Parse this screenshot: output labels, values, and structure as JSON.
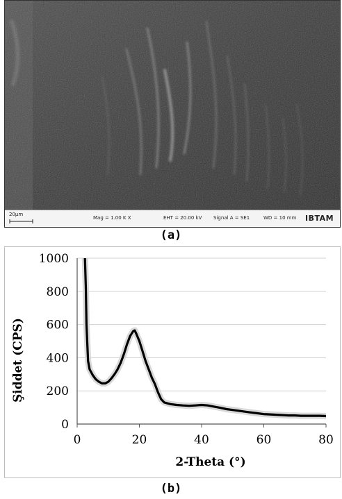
{
  "sem": {
    "scale_bar": "20µm",
    "mag": "Mag = 1.00 K X",
    "eht": "EHT = 20.00 kV",
    "signal": "Signal A = SE1",
    "wd": "WD = 10 mm",
    "brand": "IBTAM"
  },
  "captions": {
    "a": "(a)",
    "b": "(b)"
  },
  "chart_data": {
    "type": "line",
    "xlabel": "2-Theta (°)",
    "ylabel": "Şiddet (CPS)",
    "xlim": [
      0,
      80
    ],
    "ylim": [
      0,
      1000
    ],
    "xticks": [
      0,
      20,
      40,
      60,
      80
    ],
    "yticks": [
      0,
      200,
      400,
      600,
      800,
      1000
    ],
    "grid": "horizontal",
    "legend": "none",
    "line_color": "#000000",
    "x": [
      2.5,
      2.8,
      3,
      3.5,
      4,
      5,
      6,
      7,
      8,
      9,
      10,
      11,
      12,
      13,
      14,
      15,
      16,
      17,
      18,
      18.5,
      19,
      20,
      21,
      22,
      23,
      24,
      25,
      26,
      27,
      28,
      30,
      32,
      34,
      36,
      38,
      40,
      42,
      44,
      46,
      48,
      50,
      52,
      55,
      58,
      60,
      62,
      65,
      68,
      70,
      72,
      75,
      78,
      80
    ],
    "y": [
      1000,
      820,
      600,
      380,
      330,
      295,
      270,
      255,
      245,
      245,
      255,
      275,
      300,
      330,
      370,
      420,
      480,
      530,
      560,
      565,
      545,
      500,
      440,
      380,
      330,
      280,
      240,
      190,
      150,
      130,
      120,
      115,
      112,
      110,
      112,
      115,
      112,
      105,
      98,
      90,
      85,
      80,
      72,
      65,
      60,
      58,
      55,
      52,
      52,
      50,
      50,
      50,
      48
    ]
  }
}
